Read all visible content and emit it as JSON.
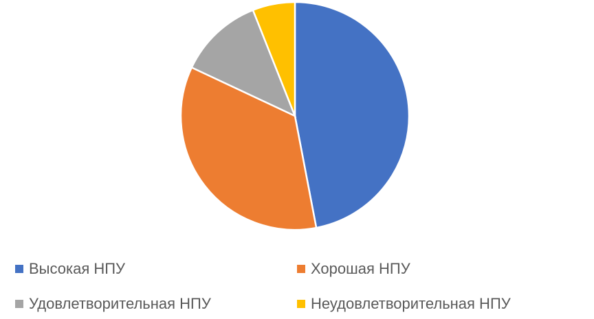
{
  "chart_data": {
    "type": "pie",
    "categories": [
      "Высокая НПУ",
      "Хорошая НПУ",
      "Удовлетворительная НПУ",
      "Неудовлетворительная НПУ"
    ],
    "values": [
      47,
      35,
      12,
      6
    ],
    "colors": [
      "#4472c4",
      "#ed7d31",
      "#a5a5a5",
      "#ffc000"
    ],
    "legend": "bottom"
  }
}
